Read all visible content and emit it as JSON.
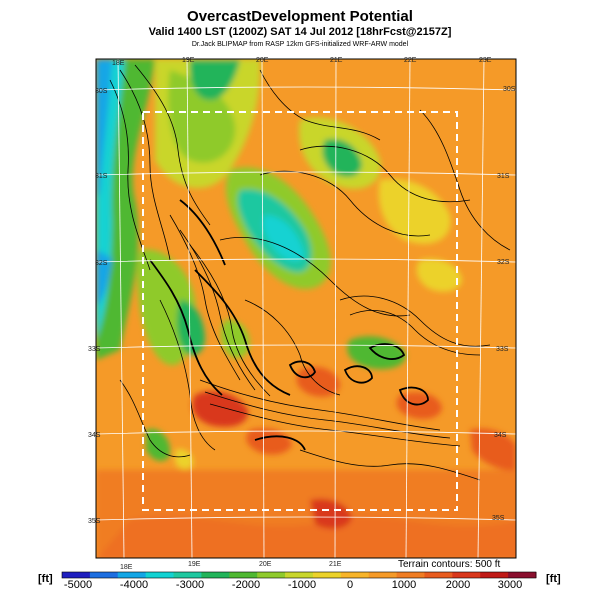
{
  "title": {
    "main": "OvercastDevelopment Potential",
    "valid": "Valid 1400 LST (1200Z) SAT 14 Jul 2012 [18hrFcst@2157Z]",
    "credit": "Dr.Jack BLIPMAP from RASP 12km GFS-initialized WRF-ARW model"
  },
  "map": {
    "lon_top": [
      "18E",
      "19E",
      "20E",
      "21E",
      "22E",
      "23E"
    ],
    "lon_bottom": [
      "18E",
      "19E",
      "20E",
      "21E"
    ],
    "lat_left": [
      "30S",
      "31S",
      "32S",
      "33S",
      "34S",
      "35S"
    ],
    "lat_right": [
      "30S",
      "31S",
      "32S",
      "33S",
      "34S",
      "35S"
    ],
    "terrain_note": "Terrain contours: 500 ft"
  },
  "colorbar": {
    "unit_left": "[ft]",
    "unit_right": "[ft]",
    "ticks": [
      "-5000",
      "-4000",
      "-3000",
      "-2000",
      "-1000",
      "0",
      "1000",
      "2000",
      "3000"
    ],
    "colors": [
      "#1f1fbf",
      "#1d6ee0",
      "#13a6e6",
      "#12d2d2",
      "#1fc8a0",
      "#22b45a",
      "#4fb832",
      "#8fca2c",
      "#c9d62c",
      "#ecd22a",
      "#f7b42a",
      "#f59a28",
      "#f07d24",
      "#e85c1f",
      "#d9371b",
      "#c01a17",
      "#8a0f2e"
    ]
  }
}
